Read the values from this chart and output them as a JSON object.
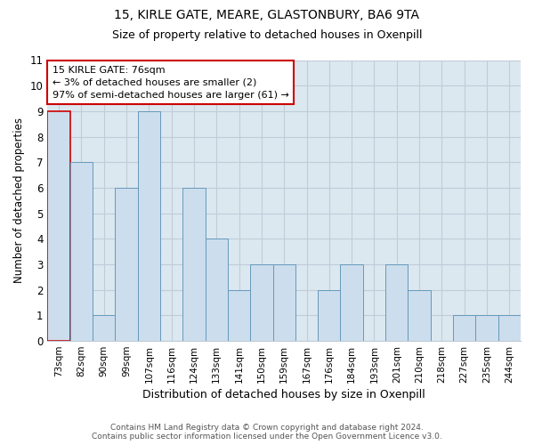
{
  "title1": "15, KIRLE GATE, MEARE, GLASTONBURY, BA6 9TA",
  "title2": "Size of property relative to detached houses in Oxenpill",
  "xlabel": "Distribution of detached houses by size in Oxenpill",
  "ylabel": "Number of detached properties",
  "categories": [
    "73sqm",
    "82sqm",
    "90sqm",
    "99sqm",
    "107sqm",
    "116sqm",
    "124sqm",
    "133sqm",
    "141sqm",
    "150sqm",
    "159sqm",
    "167sqm",
    "176sqm",
    "184sqm",
    "193sqm",
    "201sqm",
    "210sqm",
    "218sqm",
    "227sqm",
    "235sqm",
    "244sqm"
  ],
  "values": [
    9,
    7,
    1,
    6,
    9,
    0,
    6,
    4,
    2,
    3,
    3,
    0,
    2,
    3,
    0,
    3,
    2,
    0,
    1,
    1,
    1
  ],
  "bar_color": "#ccdded",
  "bar_edge_color": "#6699bb",
  "annotation_box_text": "15 KIRLE GATE: 76sqm\n← 3% of detached houses are smaller (2)\n97% of semi-detached houses are larger (61) →",
  "annotation_box_color": "#ffffff",
  "annotation_box_edge_color": "#cc0000",
  "highlight_bar_edge_color": "#cc0000",
  "footer1": "Contains HM Land Registry data © Crown copyright and database right 2024.",
  "footer2": "Contains public sector information licensed under the Open Government Licence v3.0.",
  "ylim": [
    0,
    11
  ],
  "yticks": [
    0,
    1,
    2,
    3,
    4,
    5,
    6,
    7,
    8,
    9,
    10,
    11
  ],
  "grid_color": "#c0ccd8",
  "background_color": "#dce8f0"
}
